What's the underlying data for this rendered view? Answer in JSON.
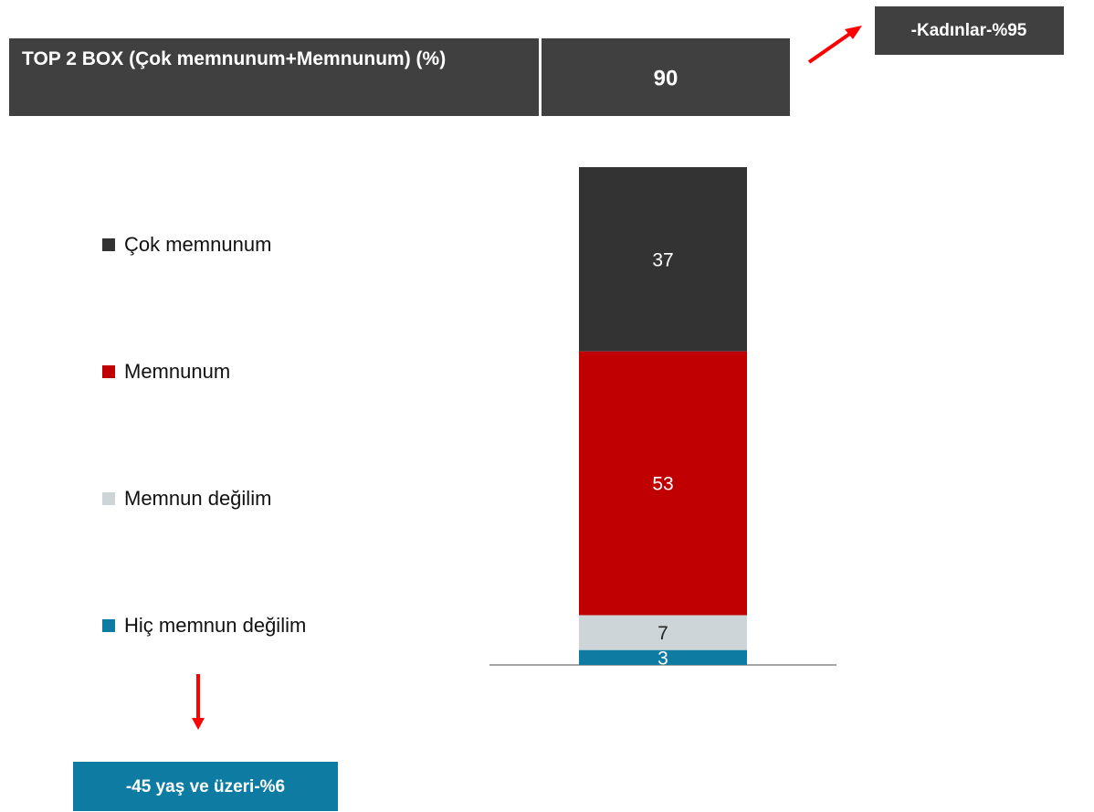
{
  "header": {
    "title": "TOP 2 BOX (Çok memnunum+Memnunum) (%)",
    "value": "90"
  },
  "annotations": {
    "top_right": "-Kadınlar-%95",
    "bottom_left": "-45 yaş ve üzeri-%6"
  },
  "chart_data": {
    "type": "stacked_bar",
    "categories": [
      null
    ],
    "ylim": [
      0,
      100
    ],
    "series": [
      {
        "name": "Hiç memnun değilim",
        "color": "#0e7ba3",
        "label_color": "#ffffff",
        "values": [
          3
        ]
      },
      {
        "name": "Memnun değilim",
        "color": "#ced5d8",
        "label_color": "#222222",
        "values": [
          7
        ]
      },
      {
        "name": "Memnunum",
        "color": "#c00000",
        "label_color": "#ffffff",
        "values": [
          53
        ]
      },
      {
        "name": "Çok memnunum",
        "color": "#333333",
        "label_color": "#ffffff",
        "values": [
          37
        ]
      }
    ]
  }
}
